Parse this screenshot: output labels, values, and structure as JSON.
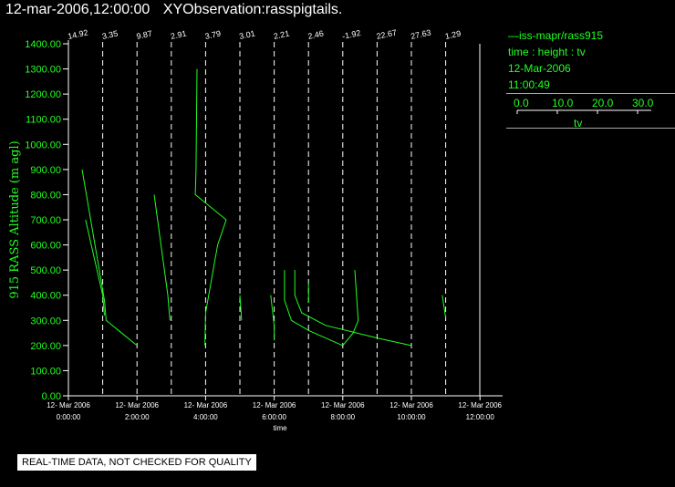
{
  "header": {
    "datetime": "12-mar-2006,12:00:00",
    "title": "XYObservation:rasspigtails."
  },
  "legend": {
    "series_line": "—iss-mapr/rass915",
    "mapping": "time : height : tv",
    "date": "12-Mar-2006",
    "time": "11:00:49",
    "scale_ticks": [
      "0.0",
      "10.0",
      "20.0",
      "30.0"
    ],
    "scale_label": "tv",
    "color": "#22ff22"
  },
  "notice": "REAL-TIME DATA, NOT CHECKED FOR QUALITY",
  "chart_data": {
    "type": "line",
    "ylabel": "915 RASS Altitude (m agl)",
    "xlabel": "time",
    "ylim": [
      0,
      1400
    ],
    "xlim_hours": [
      0,
      12
    ],
    "y_ticks": [
      "0.00",
      "100.00",
      "200.00",
      "300.00",
      "400.00",
      "500.00",
      "600.00",
      "700.00",
      "800.00",
      "900.00",
      "1000.00",
      "1100.00",
      "1200.00",
      "1300.00",
      "1400.00"
    ],
    "x_ticks": [
      {
        "date": "12- Mar 2006",
        "time": "0:00:00"
      },
      {
        "date": "12- Mar 2006",
        "time": "2:00:00"
      },
      {
        "date": "12- Mar 2006",
        "time": "4:00:00"
      },
      {
        "date": "12- Mar 2006",
        "time": "6:00:00"
      },
      {
        "date": "12- Mar 2006",
        "time": "8:00:00"
      },
      {
        "date": "12- Mar 2006",
        "time": "10:00:00"
      },
      {
        "date": "12- Mar 2006",
        "time": "12:00:00"
      }
    ],
    "profile_times_hours": [
      0,
      1,
      2,
      3,
      4,
      5,
      6,
      7,
      8,
      9,
      10,
      11
    ],
    "profile_labels": [
      "14.92",
      "3.35",
      "9.87",
      "2.91",
      "3.79",
      "3.01",
      "2.21",
      "2.46",
      "-1.92",
      "22.67",
      "27.63",
      "1.29"
    ],
    "tv_scale_per_hour": 30,
    "line_color": "#22ff22",
    "profiles": [
      {
        "time": 0,
        "points": [
          [
            0.4,
            900
          ],
          [
            1.05,
            380
          ],
          [
            1.1,
            300
          ],
          [
            2.0,
            200
          ]
        ]
      },
      {
        "time": 0,
        "points": [
          [
            0.5,
            700
          ],
          [
            1.0,
            400
          ],
          [
            1.05,
            320
          ]
        ]
      },
      {
        "time": 2,
        "points": [
          [
            0.5,
            800
          ],
          [
            0.9,
            400
          ],
          [
            0.96,
            300
          ]
        ]
      },
      {
        "time": 3,
        "points": [
          [
            0.75,
            1300
          ],
          [
            0.72,
            900
          ],
          [
            0.7,
            800
          ],
          [
            1.6,
            700
          ],
          [
            1.35,
            600
          ],
          [
            1.0,
            330
          ],
          [
            0.98,
            200
          ]
        ]
      },
      {
        "time": 5,
        "points": [
          [
            0.0,
            400
          ],
          [
            0.05,
            300
          ]
        ]
      },
      {
        "time": 6,
        "points": [
          [
            -0.1,
            400
          ],
          [
            0.0,
            280
          ],
          [
            0.0,
            220
          ]
        ]
      },
      {
        "time": 6,
        "points": [
          [
            0.3,
            500
          ],
          [
            0.3,
            380
          ],
          [
            0.5,
            300
          ],
          [
            1.0,
            260
          ],
          [
            2.0,
            200
          ]
        ]
      },
      {
        "time": 6,
        "points": [
          [
            0.6,
            500
          ],
          [
            0.6,
            400
          ],
          [
            0.8,
            330
          ],
          [
            1.5,
            280
          ],
          [
            3.0,
            230
          ],
          [
            4.0,
            200
          ]
        ]
      },
      {
        "time": 7,
        "points": [
          [
            0.0,
            450
          ],
          [
            0.0,
            370
          ]
        ]
      },
      {
        "time": 8,
        "points": [
          [
            0.35,
            500
          ],
          [
            0.45,
            300
          ],
          [
            0.3,
            250
          ],
          [
            0.0,
            200
          ]
        ]
      },
      {
        "time": 11,
        "points": [
          [
            -0.1,
            400
          ],
          [
            0.0,
            310
          ]
        ]
      }
    ]
  }
}
